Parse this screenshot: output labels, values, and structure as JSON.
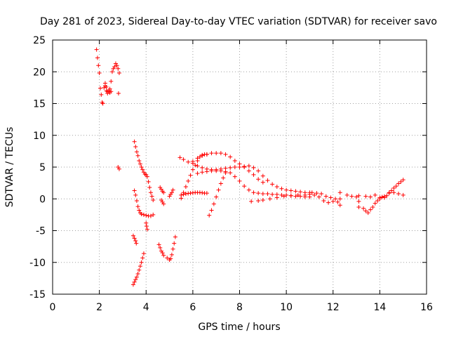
{
  "chart_data": {
    "type": "scatter",
    "title": "Day 281 of 2023, Sidereal Day-to-day VTEC variation (SDTVAR) for receiver savo",
    "xlabel": "GPS time / hours",
    "ylabel": "SDTVAR / TECUs",
    "xlim": [
      0,
      16
    ],
    "ylim": [
      -15,
      25
    ],
    "xticks": [
      0,
      2,
      4,
      6,
      8,
      10,
      12,
      14,
      16
    ],
    "yticks": [
      -15,
      -10,
      -5,
      0,
      5,
      10,
      15,
      20,
      25
    ],
    "grid": true,
    "marker": "+",
    "color": "#ff0000",
    "series": [
      {
        "name": "early-spike",
        "x": [
          1.88,
          1.92,
          1.96,
          2.0,
          2.04,
          2.08,
          2.12,
          2.15,
          2.2,
          2.25,
          2.3,
          2.35,
          2.4,
          2.45,
          2.5,
          2.55,
          2.6,
          2.65,
          2.7,
          2.75,
          2.8,
          2.85
        ],
        "y": [
          23.5,
          22.2,
          21.0,
          19.8,
          17.4,
          16.4,
          15.2,
          15.0,
          17.5,
          18.2,
          17.6,
          16.9,
          17.0,
          17.3,
          18.5,
          20.0,
          20.5,
          20.8,
          21.3,
          21.0,
          20.5,
          19.8
        ]
      },
      {
        "name": "loop-small",
        "x": [
          2.25,
          2.3,
          2.35,
          2.4,
          2.45,
          2.5
        ],
        "y": [
          17.8,
          17.0,
          16.6,
          17.0,
          16.7,
          16.9
        ]
      },
      {
        "name": "isolated-a",
        "x": [
          2.82
        ],
        "y": [
          16.6
        ]
      },
      {
        "name": "isolated-b",
        "x": [
          2.8,
          2.85
        ],
        "y": [
          5.0,
          4.7
        ]
      },
      {
        "name": "neg-column",
        "x": [
          3.45,
          3.5,
          3.55,
          3.6,
          3.65,
          3.7,
          3.75,
          3.8,
          3.85,
          3.9
        ],
        "y": [
          -13.5,
          -13.1,
          -12.7,
          -12.3,
          -11.8,
          -11.2,
          -10.6,
          -10.0,
          -9.3,
          -8.6
        ]
      },
      {
        "name": "neg-small",
        "x": [
          3.45,
          3.5,
          3.55,
          3.58
        ],
        "y": [
          -5.8,
          -6.2,
          -6.6,
          -7.0
        ]
      },
      {
        "name": "descending",
        "x": [
          3.5,
          3.55,
          3.6,
          3.65,
          3.7,
          3.75,
          3.8,
          3.85,
          3.9,
          3.95,
          4.0,
          4.05,
          4.1,
          4.15,
          4.2,
          4.25,
          4.3
        ],
        "y": [
          9.0,
          8.2,
          7.4,
          6.8,
          6.0,
          5.5,
          5.0,
          4.6,
          4.2,
          3.9,
          3.8,
          3.5,
          2.7,
          1.8,
          1.0,
          0.4,
          -0.2
        ]
      },
      {
        "name": "dip-curve",
        "x": [
          3.5,
          3.55,
          3.6,
          3.65,
          3.7,
          3.75,
          3.8,
          3.9,
          4.0,
          4.1,
          4.2,
          4.3
        ],
        "y": [
          1.3,
          0.6,
          -0.3,
          -1.2,
          -1.8,
          -2.2,
          -2.4,
          -2.5,
          -2.6,
          -2.7,
          -2.7,
          -2.5
        ]
      },
      {
        "name": "drop-b",
        "x": [
          4.0,
          4.02,
          4.05
        ],
        "y": [
          -3.8,
          -4.3,
          -4.8
        ]
      },
      {
        "name": "mid-a",
        "x": [
          4.55,
          4.6,
          4.65,
          4.7,
          4.75
        ],
        "y": [
          -7.2,
          -7.7,
          -8.2,
          -8.5,
          -8.9
        ]
      },
      {
        "name": "mid-b",
        "x": [
          4.6,
          4.65,
          4.7,
          4.75
        ],
        "y": [
          1.8,
          1.5,
          1.2,
          1.0
        ]
      },
      {
        "name": "mid-c",
        "x": [
          4.65,
          4.7,
          4.75
        ],
        "y": [
          -0.2,
          -0.5,
          -0.8
        ]
      },
      {
        "name": "mid-d",
        "x": [
          4.9,
          5.0,
          5.05,
          5.1,
          5.15,
          5.2,
          5.25
        ],
        "y": [
          -9.3,
          -9.6,
          -9.4,
          -8.8,
          -7.9,
          -7.0,
          -6.0
        ]
      },
      {
        "name": "mid-e",
        "x": [
          5.0,
          5.05,
          5.1,
          5.15
        ],
        "y": [
          0.4,
          0.7,
          1.0,
          1.4
        ]
      },
      {
        "name": "rise-5-7",
        "x": [
          5.5,
          5.6,
          5.7,
          5.8,
          5.9,
          6.0,
          6.1,
          6.2,
          6.3,
          6.4,
          6.5,
          6.6
        ],
        "y": [
          0.1,
          1.0,
          1.9,
          2.8,
          3.7,
          4.6,
          5.3,
          6.0,
          6.6,
          6.9,
          7.0,
          7.0
        ]
      },
      {
        "name": "flat-1",
        "x": [
          5.5,
          5.6,
          5.7,
          5.8,
          5.9,
          6.0,
          6.1,
          6.2,
          6.3,
          6.4,
          6.5,
          6.6
        ],
        "y": [
          0.6,
          0.7,
          0.8,
          0.85,
          0.9,
          0.95,
          1.0,
          1.0,
          1.0,
          0.95,
          0.9,
          0.9
        ]
      },
      {
        "name": "upper-band",
        "x": [
          5.45,
          5.6,
          5.8,
          6.0,
          6.2,
          6.4,
          6.6,
          6.8,
          7.0,
          7.2,
          7.4,
          7.6,
          7.8,
          8.0,
          8.2,
          8.4,
          8.6,
          8.8,
          9.0,
          9.2,
          9.4,
          9.6,
          9.8,
          10.0,
          10.2,
          10.4,
          10.6,
          10.8,
          11.0
        ],
        "y": [
          6.5,
          6.2,
          5.8,
          5.6,
          5.2,
          4.9,
          4.7,
          4.6,
          4.6,
          4.7,
          4.8,
          4.9,
          5.0,
          5.0,
          5.1,
          5.2,
          4.9,
          4.4,
          3.6,
          2.9,
          2.3,
          1.9,
          1.6,
          1.4,
          1.3,
          1.2,
          1.1,
          1.0,
          1.0
        ]
      },
      {
        "name": "top-band",
        "x": [
          6.0,
          6.2,
          6.4,
          6.6,
          6.8,
          7.0,
          7.2,
          7.4,
          7.6,
          7.8,
          8.0,
          8.2,
          8.4,
          8.6,
          8.8,
          9.0
        ],
        "y": [
          5.9,
          6.4,
          6.8,
          7.0,
          7.2,
          7.2,
          7.2,
          7.0,
          6.6,
          6.0,
          5.5,
          5.0,
          4.4,
          3.8,
          3.1,
          2.6
        ]
      },
      {
        "name": "lower-band",
        "x": [
          6.2,
          6.4,
          6.6,
          6.8,
          7.0,
          7.2,
          7.4,
          7.6,
          7.8,
          8.0,
          8.2,
          8.4,
          8.6,
          8.8,
          9.0,
          9.2,
          9.4,
          9.6,
          9.8,
          10.0,
          10.2,
          10.4,
          10.6,
          10.8,
          11.0
        ],
        "y": [
          4.0,
          4.2,
          4.3,
          4.4,
          4.4,
          4.4,
          4.3,
          4.1,
          3.5,
          2.8,
          2.0,
          1.4,
          1.0,
          0.9,
          0.8,
          0.8,
          0.7,
          0.7,
          0.6,
          0.6,
          0.5,
          0.4,
          0.4,
          0.3,
          0.3
        ]
      },
      {
        "name": "min-trace",
        "x": [
          6.7,
          6.8,
          6.9,
          7.0,
          7.1,
          7.2,
          7.3,
          7.4
        ],
        "y": [
          -2.6,
          -1.8,
          -0.8,
          0.3,
          1.4,
          2.4,
          3.3,
          4.1
        ]
      },
      {
        "name": "base-line",
        "x": [
          8.5,
          8.8,
          9.0,
          9.3,
          9.6,
          9.9,
          10.2,
          10.5,
          10.8,
          11.0
        ],
        "y": [
          -0.4,
          -0.3,
          -0.2,
          0.0,
          0.2,
          0.4,
          0.5,
          0.6,
          0.6,
          0.7
        ]
      },
      {
        "name": "cluster-11-12",
        "x": [
          11.1,
          11.2,
          11.3,
          11.4,
          11.5,
          11.6,
          11.7,
          11.8,
          11.9,
          12.0,
          12.1,
          12.2
        ],
        "y": [
          1.0,
          0.6,
          0.9,
          0.3,
          0.8,
          -0.3,
          0.4,
          -0.6,
          0.2,
          -0.4,
          0.0,
          -0.5
        ]
      },
      {
        "name": "spike-12",
        "x": [
          12.3,
          12.3,
          12.3
        ],
        "y": [
          1.0,
          0.0,
          -1.0
        ]
      },
      {
        "name": "dots-12-13",
        "x": [
          12.6,
          12.8,
          13.0
        ],
        "y": [
          0.6,
          0.4,
          0.3
        ]
      },
      {
        "name": "spike-13",
        "x": [
          13.1,
          13.1,
          13.1
        ],
        "y": [
          0.5,
          -0.4,
          -1.3
        ]
      },
      {
        "name": "valley-13-14",
        "x": [
          13.3,
          13.4,
          13.5,
          13.6,
          13.7,
          13.8,
          13.9,
          14.0,
          14.1,
          14.2,
          14.3,
          14.4,
          14.5,
          14.6,
          14.7,
          14.8,
          14.9,
          15.0
        ],
        "y": [
          -1.5,
          -1.9,
          -2.2,
          -1.7,
          -1.3,
          -0.7,
          -0.3,
          0.0,
          0.3,
          0.2,
          0.5,
          1.0,
          1.3,
          1.7,
          2.0,
          2.4,
          2.7,
          3.0
        ]
      },
      {
        "name": "top-13-14",
        "x": [
          13.4,
          13.6,
          13.8,
          14.0,
          14.2,
          14.4,
          14.6,
          14.8,
          15.0
        ],
        "y": [
          0.4,
          0.3,
          0.6,
          0.2,
          0.4,
          0.9,
          1.0,
          0.8,
          0.6
        ]
      }
    ]
  }
}
